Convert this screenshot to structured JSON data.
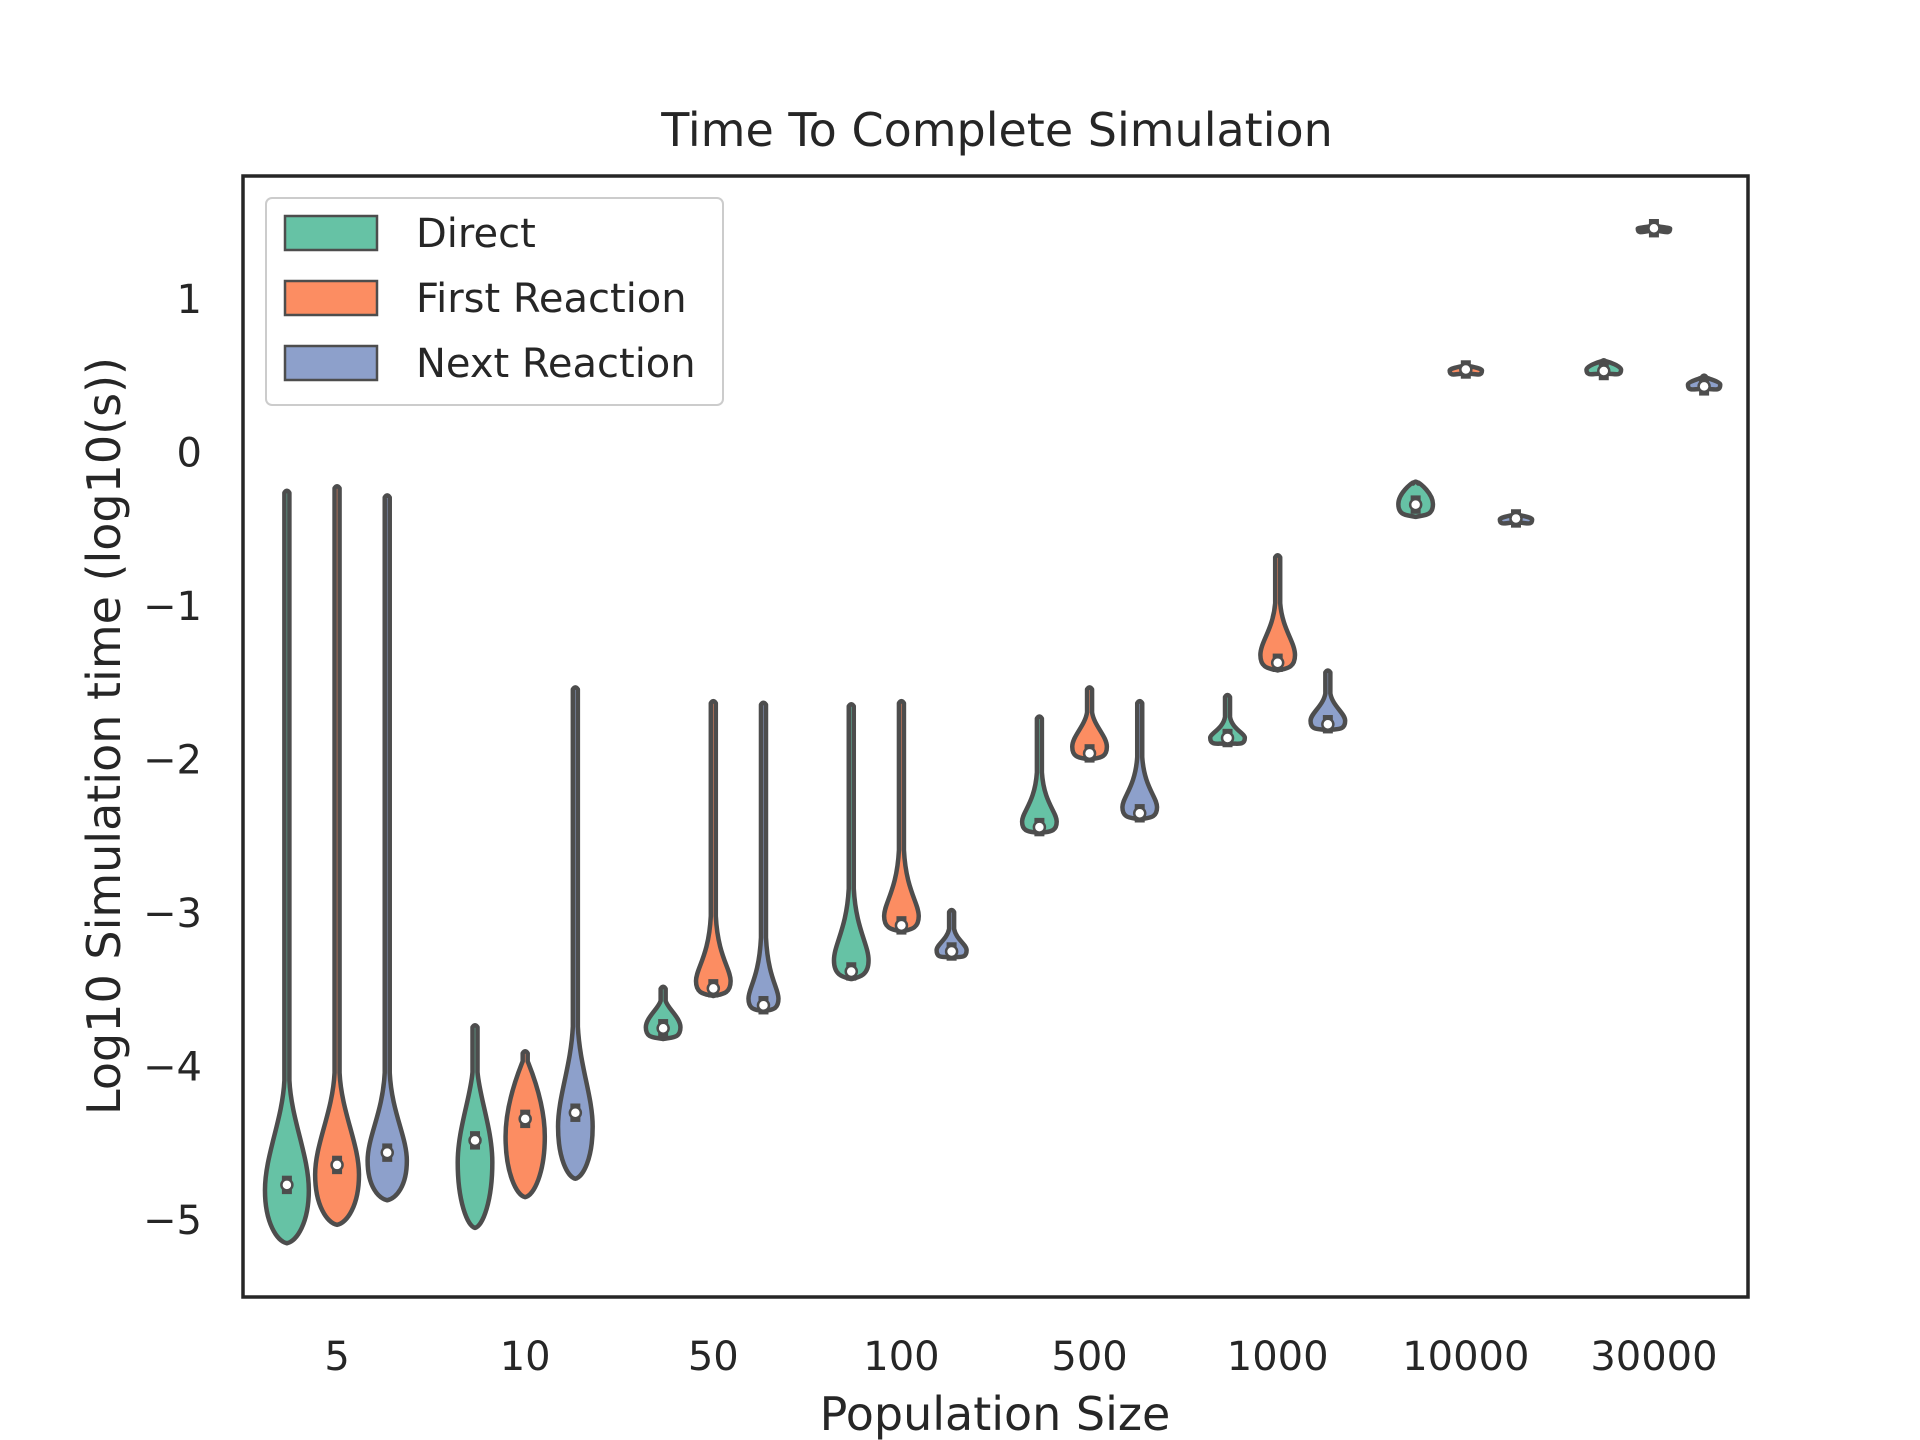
{
  "chart_data": {
    "type": "violin",
    "title": "Time To Complete Simulation",
    "xlabel": "Population Size",
    "ylabel": "Log10 Simulation time (log10(s))",
    "categories": [
      "5",
      "10",
      "50",
      "100",
      "500",
      "1000",
      "10000",
      "30000"
    ],
    "ylim": [
      -5.5,
      1.8
    ],
    "yticks": [
      -5,
      -4,
      -3,
      -2,
      -1,
      0,
      1
    ],
    "ytick_labels": [
      "−5",
      "−4",
      "−3",
      "−2",
      "−1",
      "0",
      "1"
    ],
    "grid": false,
    "legend": {
      "location": "upper-left"
    },
    "series": [
      {
        "name": "Direct",
        "color": "#66c2a5",
        "violins": [
          {
            "min": -5.15,
            "max": -0.25,
            "median": -4.77,
            "bulge_low": -5.05,
            "bulge_high": -4.35,
            "width": 0.38
          },
          {
            "min": -5.05,
            "max": -3.73,
            "median": -4.48,
            "bulge_low": -4.85,
            "bulge_high": -4.2,
            "width": 0.3
          },
          {
            "min": -3.82,
            "max": -3.48,
            "median": -3.75,
            "bulge_low": -3.81,
            "bulge_high": -3.62,
            "width": 0.3
          },
          {
            "min": -3.43,
            "max": -1.64,
            "median": -3.38,
            "bulge_low": -3.42,
            "bulge_high": -3.1,
            "width": 0.3
          },
          {
            "min": -2.48,
            "max": -1.72,
            "median": -2.44,
            "bulge_low": -2.47,
            "bulge_high": -2.28,
            "width": 0.3
          },
          {
            "min": -1.9,
            "max": -1.58,
            "median": -1.86,
            "bulge_low": -1.89,
            "bulge_high": -1.8,
            "width": 0.3
          },
          {
            "min": -0.42,
            "max": -0.19,
            "median": -0.34,
            "bulge_low": -0.41,
            "bulge_high": -0.2,
            "width": 0.3
          },
          {
            "min": 0.51,
            "max": 0.6,
            "median": 0.53,
            "bulge_low": 0.51,
            "bulge_high": 0.59,
            "width": 0.3
          }
        ]
      },
      {
        "name": "First Reaction",
        "color": "#fc8d62",
        "violins": [
          {
            "min": -5.03,
            "max": -0.22,
            "median": -4.64,
            "bulge_low": -4.92,
            "bulge_high": -4.3,
            "width": 0.38
          },
          {
            "min": -4.85,
            "max": -3.9,
            "median": -4.34,
            "bulge_low": -4.7,
            "bulge_high": -4.0,
            "width": 0.34
          },
          {
            "min": -3.54,
            "max": -1.62,
            "median": -3.49,
            "bulge_low": -3.53,
            "bulge_high": -3.28,
            "width": 0.3
          },
          {
            "min": -3.12,
            "max": -1.62,
            "median": -3.08,
            "bulge_low": -3.11,
            "bulge_high": -2.85,
            "width": 0.3
          },
          {
            "min": -2.0,
            "max": -1.53,
            "median": -1.96,
            "bulge_low": -1.99,
            "bulge_high": -1.78,
            "width": 0.3
          },
          {
            "min": -1.42,
            "max": -0.67,
            "median": -1.37,
            "bulge_low": -1.41,
            "bulge_high": -1.15,
            "width": 0.3
          },
          {
            "min": 0.51,
            "max": 0.57,
            "median": 0.54,
            "bulge_low": 0.52,
            "bulge_high": 0.56,
            "width": 0.28
          },
          {
            "min": 1.44,
            "max": 1.48,
            "median": 1.46,
            "bulge_low": 1.45,
            "bulge_high": 1.47,
            "width": 0.28
          }
        ]
      },
      {
        "name": "Next Reaction",
        "color": "#8da0cb",
        "violins": [
          {
            "min": -4.87,
            "max": -0.28,
            "median": -4.56,
            "bulge_low": -4.78,
            "bulge_high": -4.3,
            "width": 0.34
          },
          {
            "min": -4.73,
            "max": -1.53,
            "median": -4.3,
            "bulge_low": -4.6,
            "bulge_high": -4.0,
            "width": 0.3
          },
          {
            "min": -3.64,
            "max": -1.63,
            "median": -3.6,
            "bulge_low": -3.63,
            "bulge_high": -3.42,
            "width": 0.26
          },
          {
            "min": -3.29,
            "max": -2.98,
            "median": -3.25,
            "bulge_low": -3.28,
            "bulge_high": -3.17,
            "width": 0.26
          },
          {
            "min": -2.39,
            "max": -1.62,
            "median": -2.35,
            "bulge_low": -2.38,
            "bulge_high": -2.18,
            "width": 0.3
          },
          {
            "min": -1.81,
            "max": -1.42,
            "median": -1.77,
            "bulge_low": -1.8,
            "bulge_high": -1.65,
            "width": 0.3
          },
          {
            "min": -0.46,
            "max": -0.4,
            "median": -0.43,
            "bulge_low": -0.45,
            "bulge_high": -0.41,
            "width": 0.28
          },
          {
            "min": 0.41,
            "max": 0.5,
            "median": 0.43,
            "bulge_low": 0.42,
            "bulge_high": 0.48,
            "width": 0.28
          }
        ]
      }
    ]
  }
}
